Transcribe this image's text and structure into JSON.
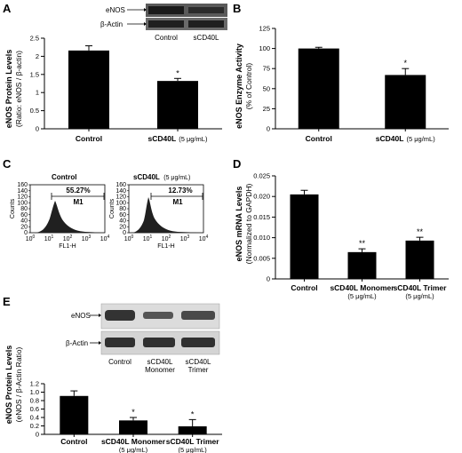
{
  "panels": {
    "A": {
      "label": "A",
      "ylabel": "eNOS Protein Levels",
      "ylabel2": "(Ratio: eNOS / β-actin)",
      "blot": {
        "rows": [
          "eNOS",
          "β-Actin"
        ],
        "lanes": [
          "Control",
          "sCD40L"
        ]
      }
    },
    "B": {
      "label": "B",
      "ylabel": "eNOS Enzyme Activity",
      "ylabel2": "(% of Control)"
    },
    "C": {
      "label": "C",
      "histograms": [
        {
          "title": "Control",
          "unit": "",
          "percent": "55.27%",
          "gate": "M1",
          "xlabel": "FL1-H",
          "ylabel": "Counts"
        },
        {
          "title": "sCD40L",
          "unit": "(5 μg/mL)",
          "percent": "12.73%",
          "gate": "M1",
          "xlabel": "FL1-H",
          "ylabel": "Counts"
        }
      ],
      "yticks": [
        "0",
        "20",
        "40",
        "60",
        "80",
        "100",
        "120",
        "140",
        "160"
      ]
    },
    "D": {
      "label": "D",
      "ylabel": "eNOS mRNA Levels",
      "ylabel2": "(Normalized to GAPDH)"
    },
    "E": {
      "label": "E",
      "ylabel": "eNOS Protein Levels",
      "ylabel2": "(eNOS / β-Actin Ratio)",
      "blot": {
        "rows": [
          "eNOS",
          "β-Actin"
        ],
        "lanes": [
          [
            "Control"
          ],
          [
            "sCD40L",
            "Monomer"
          ],
          [
            "sCD40L",
            "Trimer"
          ]
        ]
      }
    }
  },
  "chart_data": [
    {
      "panel": "A",
      "type": "bar",
      "categories": [
        {
          "name": "Control",
          "sub": ""
        },
        {
          "name": "sCD40L",
          "sub": "(5 μg/mL)"
        }
      ],
      "values": [
        2.16,
        1.32
      ],
      "errors": [
        0.13,
        0.07
      ],
      "significance": [
        "",
        "*"
      ],
      "ylim": [
        0,
        2.5
      ],
      "yticks": [
        "0",
        "0.5",
        "1",
        "1.5",
        "2",
        "2.5"
      ]
    },
    {
      "panel": "B",
      "type": "bar",
      "categories": [
        {
          "name": "Control",
          "sub": ""
        },
        {
          "name": "sCD40L",
          "sub": "(5 μg/mL)"
        }
      ],
      "values": [
        100,
        67
      ],
      "errors": [
        1.5,
        8
      ],
      "significance": [
        "",
        "*"
      ],
      "ylim": [
        0,
        125
      ],
      "yticks": [
        "0",
        "25",
        "50",
        "75",
        "100",
        "125"
      ]
    },
    {
      "panel": "D",
      "type": "bar",
      "categories": [
        {
          "name": "Control",
          "sub": ""
        },
        {
          "name": "sCD40L Monomer",
          "sub": "(5 μg/mL)"
        },
        {
          "name": "sCD40L Trimer",
          "sub": "(5 μg/mL)"
        }
      ],
      "values": [
        0.0205,
        0.0065,
        0.0093
      ],
      "errors": [
        0.001,
        0.0008,
        0.0008
      ],
      "significance": [
        "",
        "**",
        "**"
      ],
      "ylim": [
        0,
        0.025
      ],
      "yticks": [
        "0",
        "0.005",
        "0.010",
        "0.015",
        "0.020",
        "0.025"
      ]
    },
    {
      "panel": "E",
      "type": "bar",
      "categories": [
        {
          "name": "Control",
          "sub": ""
        },
        {
          "name": "sCD40L Monomer",
          "sub": "(5 μg/mL)"
        },
        {
          "name": "sCD40L Trimer",
          "sub": "(5 μg/mL)"
        }
      ],
      "values": [
        0.91,
        0.33,
        0.19
      ],
      "errors": [
        0.12,
        0.07,
        0.16
      ],
      "significance": [
        "",
        "*",
        "*"
      ],
      "ylim": [
        0,
        1.2
      ],
      "yticks": [
        "0",
        "0.2",
        "0.4",
        "0.6",
        "0.8",
        "1.0",
        "1.2"
      ]
    }
  ]
}
